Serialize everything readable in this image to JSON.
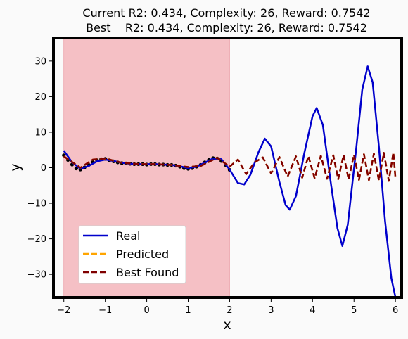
{
  "chart_data": {
    "type": "line",
    "title_line1": "Current R2: 0.434, Complexity: 26, Reward: 0.7542",
    "title_line2": "Best    R2: 0.434, Complexity: 26, Reward: 0.7542",
    "xlabel": "x",
    "ylabel": "y",
    "xlim": [
      -2.25,
      6.15
    ],
    "ylim": [
      -36.5,
      36.5
    ],
    "xticks": [
      -2,
      -1,
      0,
      1,
      2,
      3,
      4,
      5,
      6
    ],
    "yticks": [
      -30,
      -20,
      -10,
      0,
      10,
      20,
      30
    ],
    "shaded_region": {
      "x_from": -2,
      "x_to": 2,
      "color": "#f5c0c5"
    },
    "grid": false,
    "legend_placement": "lower-left",
    "series": [
      {
        "name": "Real",
        "color": "#0000cc",
        "style": "solid",
        "points": [
          [
            -2.0,
            4.8
          ],
          [
            -1.8,
            1.5
          ],
          [
            -1.6,
            -0.3
          ],
          [
            -1.4,
            0.5
          ],
          [
            -1.2,
            1.8
          ],
          [
            -1.0,
            2.3
          ],
          [
            -0.8,
            1.9
          ],
          [
            -0.6,
            1.4
          ],
          [
            -0.4,
            1.1
          ],
          [
            -0.2,
            1.0
          ],
          [
            0.0,
            1.0
          ],
          [
            0.2,
            1.0
          ],
          [
            0.4,
            0.9
          ],
          [
            0.6,
            0.8
          ],
          [
            0.8,
            0.4
          ],
          [
            1.0,
            -0.1
          ],
          [
            1.2,
            0.3
          ],
          [
            1.4,
            1.4
          ],
          [
            1.6,
            2.6
          ],
          [
            1.8,
            2.4
          ],
          [
            2.0,
            -0.5
          ],
          [
            2.2,
            -4.3
          ],
          [
            2.35,
            -4.7
          ],
          [
            2.5,
            -2.0
          ],
          [
            2.7,
            4.5
          ],
          [
            2.85,
            8.2
          ],
          [
            3.0,
            6.0
          ],
          [
            3.2,
            -4.0
          ],
          [
            3.35,
            -10.5
          ],
          [
            3.45,
            -11.8
          ],
          [
            3.6,
            -8.0
          ],
          [
            3.8,
            4.0
          ],
          [
            4.0,
            14.5
          ],
          [
            4.1,
            16.8
          ],
          [
            4.25,
            12.0
          ],
          [
            4.45,
            -5.0
          ],
          [
            4.6,
            -17.0
          ],
          [
            4.72,
            -22.0
          ],
          [
            4.85,
            -16.0
          ],
          [
            5.05,
            5.0
          ],
          [
            5.2,
            22.0
          ],
          [
            5.33,
            28.5
          ],
          [
            5.45,
            24.0
          ],
          [
            5.6,
            6.0
          ],
          [
            5.75,
            -15.0
          ],
          [
            5.9,
            -31.0
          ],
          [
            6.0,
            -36.5
          ]
        ]
      },
      {
        "name": "Predicted",
        "color": "#ffa500",
        "style": "dashed",
        "points": [
          [
            -2.0,
            3.2
          ],
          [
            -1.6,
            0.0
          ],
          [
            -1.3,
            2.3
          ],
          [
            -1.0,
            2.6
          ],
          [
            -0.6,
            1.4
          ],
          [
            -0.2,
            1.0
          ],
          [
            0.2,
            1.0
          ],
          [
            0.6,
            0.8
          ],
          [
            1.0,
            0.2
          ],
          [
            1.3,
            0.5
          ],
          [
            1.7,
            2.8
          ],
          [
            2.0,
            0.3
          ],
          [
            2.2,
            2.3
          ],
          [
            2.4,
            -1.8
          ],
          [
            2.6,
            1.5
          ],
          [
            2.8,
            2.9
          ],
          [
            3.0,
            -1.6
          ],
          [
            3.2,
            3.0
          ],
          [
            3.4,
            -2.5
          ],
          [
            3.6,
            3.2
          ],
          [
            3.75,
            -2.8
          ],
          [
            3.9,
            3.3
          ],
          [
            4.05,
            -3.0
          ],
          [
            4.2,
            3.4
          ],
          [
            4.35,
            -3.1
          ],
          [
            4.5,
            3.5
          ],
          [
            4.62,
            -3.2
          ],
          [
            4.75,
            3.6
          ],
          [
            4.87,
            -3.3
          ],
          [
            5.0,
            3.7
          ],
          [
            5.12,
            -3.4
          ],
          [
            5.24,
            3.8
          ],
          [
            5.36,
            -3.5
          ],
          [
            5.48,
            4.0
          ],
          [
            5.6,
            -3.6
          ],
          [
            5.72,
            4.2
          ],
          [
            5.84,
            -3.7
          ],
          [
            5.95,
            4.3
          ],
          [
            6.0,
            -3.0
          ]
        ]
      },
      {
        "name": "Best Found",
        "color": "#800000",
        "style": "dashed",
        "points": [
          [
            -2.0,
            3.2
          ],
          [
            -1.6,
            0.0
          ],
          [
            -1.3,
            2.3
          ],
          [
            -1.0,
            2.6
          ],
          [
            -0.6,
            1.4
          ],
          [
            -0.2,
            1.0
          ],
          [
            0.2,
            1.0
          ],
          [
            0.6,
            0.8
          ],
          [
            1.0,
            0.2
          ],
          [
            1.3,
            0.5
          ],
          [
            1.7,
            2.8
          ],
          [
            2.0,
            0.3
          ],
          [
            2.2,
            2.3
          ],
          [
            2.4,
            -1.8
          ],
          [
            2.6,
            1.5
          ],
          [
            2.8,
            2.9
          ],
          [
            3.0,
            -1.6
          ],
          [
            3.2,
            3.0
          ],
          [
            3.4,
            -2.5
          ],
          [
            3.6,
            3.2
          ],
          [
            3.75,
            -2.8
          ],
          [
            3.9,
            3.3
          ],
          [
            4.05,
            -3.0
          ],
          [
            4.2,
            3.4
          ],
          [
            4.35,
            -3.1
          ],
          [
            4.5,
            3.5
          ],
          [
            4.62,
            -3.2
          ],
          [
            4.75,
            3.6
          ],
          [
            4.87,
            -3.3
          ],
          [
            5.0,
            3.7
          ],
          [
            5.12,
            -3.4
          ],
          [
            5.24,
            3.8
          ],
          [
            5.36,
            -3.5
          ],
          [
            5.48,
            4.0
          ],
          [
            5.6,
            -3.6
          ],
          [
            5.72,
            4.2
          ],
          [
            5.84,
            -3.7
          ],
          [
            5.95,
            4.3
          ],
          [
            6.0,
            -3.0
          ]
        ]
      }
    ],
    "samples": {
      "color": "#000000",
      "points": [
        [
          -2.0,
          3.5
        ],
        [
          -1.9,
          2.2
        ],
        [
          -1.8,
          0.9
        ],
        [
          -1.7,
          -0.2
        ],
        [
          -1.6,
          -0.5
        ],
        [
          -1.5,
          0.1
        ],
        [
          -1.4,
          0.8
        ],
        [
          -1.3,
          1.6
        ],
        [
          -1.2,
          2.1
        ],
        [
          -1.1,
          2.4
        ],
        [
          -1.0,
          2.5
        ],
        [
          -0.9,
          2.1
        ],
        [
          -0.8,
          1.8
        ],
        [
          -0.7,
          1.5
        ],
        [
          -0.6,
          1.3
        ],
        [
          -0.5,
          1.2
        ],
        [
          -0.4,
          1.1
        ],
        [
          -0.3,
          1.0
        ],
        [
          -0.2,
          1.0
        ],
        [
          -0.1,
          1.0
        ],
        [
          0.0,
          0.9
        ],
        [
          0.1,
          1.0
        ],
        [
          0.2,
          1.0
        ],
        [
          0.3,
          0.9
        ],
        [
          0.4,
          0.9
        ],
        [
          0.5,
          0.8
        ],
        [
          0.6,
          0.8
        ],
        [
          0.7,
          0.6
        ],
        [
          0.8,
          0.3
        ],
        [
          0.9,
          -0.1
        ],
        [
          1.0,
          -0.3
        ],
        [
          1.1,
          -0.1
        ],
        [
          1.2,
          0.3
        ],
        [
          1.3,
          0.8
        ],
        [
          1.4,
          1.5
        ],
        [
          1.5,
          2.2
        ],
        [
          1.6,
          2.7
        ],
        [
          1.7,
          2.6
        ],
        [
          1.8,
          1.9
        ],
        [
          1.9,
          0.8
        ],
        [
          2.0,
          -0.6
        ]
      ]
    }
  }
}
